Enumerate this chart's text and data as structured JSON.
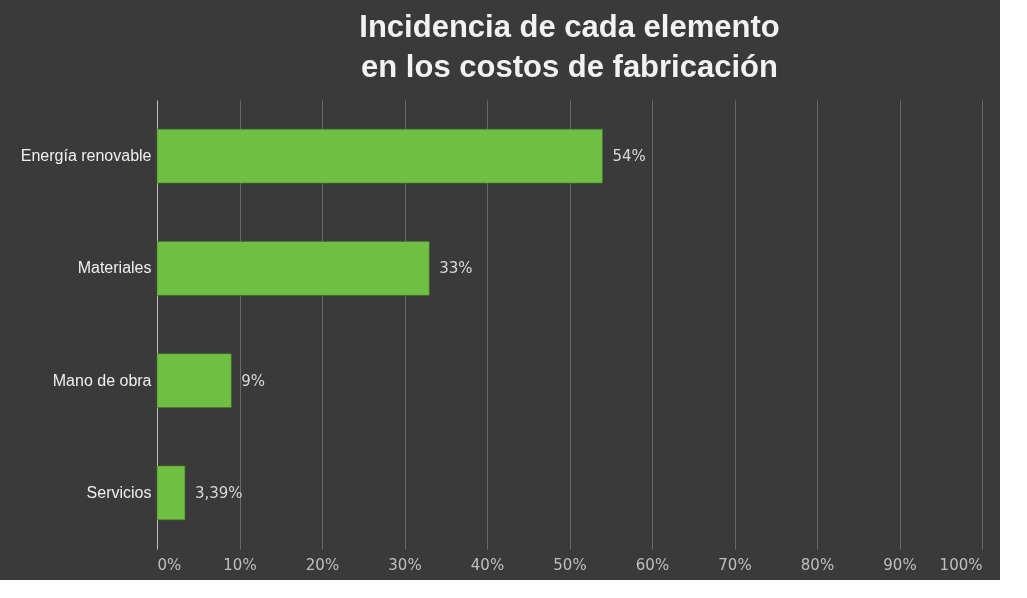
{
  "chart_data": {
    "type": "bar",
    "orientation": "horizontal",
    "title": "Incidencia de cada elemento en los costos de fabricación",
    "categories": [
      "Energía renovable",
      "Materiales",
      "Mano de obra",
      "Servicios"
    ],
    "values": [
      54,
      33,
      9,
      3.39
    ],
    "value_labels": [
      "54%",
      "33%",
      "9%",
      "3,39%"
    ],
    "color": "#6fbf45",
    "xlim": [
      0,
      100
    ],
    "xticks": [
      {
        "value": 0,
        "label": "0%"
      },
      {
        "value": 10,
        "label": "10%"
      },
      {
        "value": 20,
        "label": "20%"
      },
      {
        "value": 30,
        "label": "30%"
      },
      {
        "value": 40,
        "label": "40%"
      },
      {
        "value": 50,
        "label": "50%"
      },
      {
        "value": 60,
        "label": "60%"
      },
      {
        "value": 70,
        "label": "70%"
      },
      {
        "value": 80,
        "label": "80%"
      },
      {
        "value": 90,
        "label": "90%"
      },
      {
        "value": 100,
        "label": "100%"
      }
    ],
    "grid": "x"
  }
}
